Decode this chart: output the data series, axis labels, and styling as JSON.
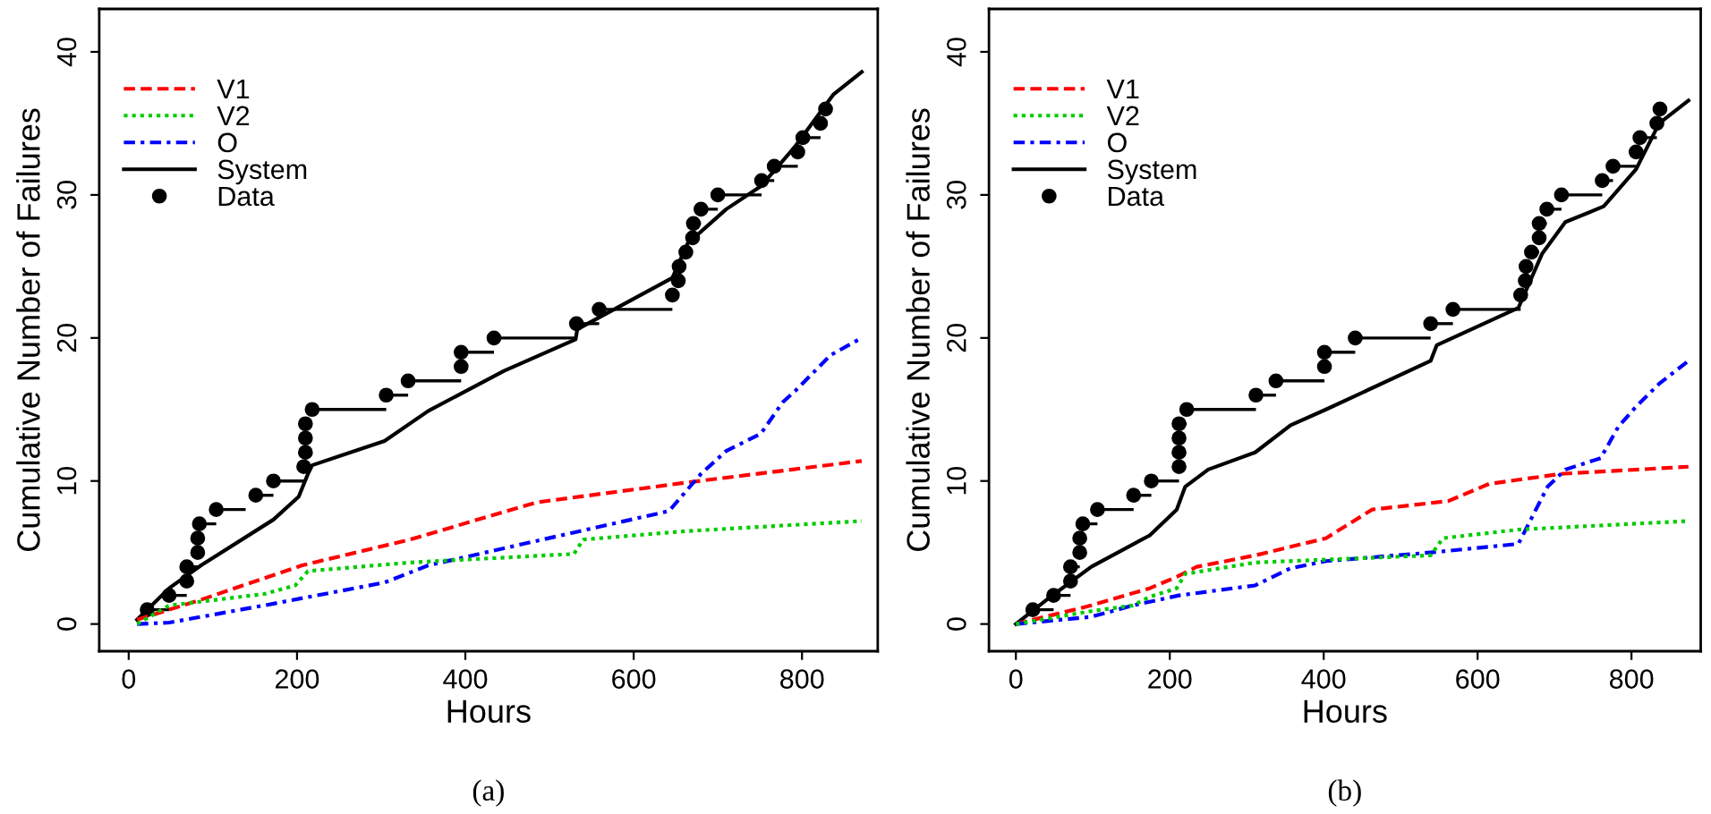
{
  "chart_data": [
    {
      "type": "line",
      "xlabel": "Hours",
      "ylabel": "Cumulative Number of Failures",
      "annotations": [
        "(a)"
      ],
      "xlim": [
        -35,
        890
      ],
      "ylim": [
        -1.9,
        43
      ],
      "xticks": [
        0,
        200,
        400,
        600,
        800
      ],
      "yticks": [
        0,
        10,
        20,
        30,
        40
      ],
      "grid": false,
      "legend": "top left",
      "series": [
        {
          "name": "V1",
          "color": "#ff0000",
          "line_style": "dashed",
          "x": [
            10,
            86,
            206,
            334,
            484,
            664,
            871
          ],
          "values": [
            0.3,
            1.7,
            4.1,
            5.9,
            8.5,
            9.9,
            11.4
          ]
        },
        {
          "name": "V2",
          "color": "#00cc00",
          "line_style": "dotted",
          "x": [
            10,
            48,
            161,
            198,
            213,
            334,
            529,
            540,
            664,
            871
          ],
          "values": [
            0,
            1.3,
            2.1,
            2.7,
            3.7,
            4.3,
            4.9,
            5.9,
            6.5,
            7.2
          ]
        },
        {
          "name": "O",
          "color": "#0000ff",
          "line_style": "dashdot",
          "x": [
            10,
            48,
            161,
            304,
            356,
            642,
            680,
            710,
            751,
            777,
            792,
            834,
            871
          ],
          "values": [
            0,
            0.1,
            1.3,
            2.9,
            4.1,
            7.9,
            10.5,
            12.1,
            13.3,
            15.5,
            16.3,
            18.8,
            20
          ]
        },
        {
          "name": "System",
          "color": "#000000",
          "line_style": "solid",
          "x": [
            10,
            48,
            86,
            172,
            202,
            213,
            218,
            304,
            356,
            446,
            531,
            533,
            646,
            664,
            710,
            751,
            792,
            837,
            871
          ],
          "values": [
            0.3,
            2.5,
            4.1,
            7.3,
            8.9,
            10.5,
            11.1,
            12.8,
            14.9,
            17.7,
            19.9,
            20.6,
            24.2,
            26.6,
            29,
            30.6,
            33.4,
            37,
            38.6
          ]
        },
        {
          "name": "Data",
          "type": "scatter",
          "color": "#000000",
          "marker": "circle",
          "xerrors": [
            [
              22,
              48
            ],
            [
              48,
              69
            ],
            null,
            [
              69,
              82
            ],
            null,
            null,
            [
              84,
              104
            ],
            [
              104,
              139
            ],
            [
              151,
              172
            ],
            [
              172,
              208
            ],
            null,
            null,
            null,
            [
              210,
              218
            ],
            [
              218,
              306
            ],
            [
              306,
              332
            ],
            [
              332,
              395
            ],
            null,
            [
              395,
              434
            ],
            [
              434,
              532
            ],
            [
              532,
              559
            ],
            [
              559,
              646
            ],
            [
              646,
              653
            ],
            null,
            [
              654,
              662
            ],
            [
              662,
              670
            ],
            null,
            [
              671,
              680
            ],
            [
              680,
              700
            ],
            [
              700,
              752
            ],
            [
              752,
              767
            ],
            [
              767,
              795
            ],
            [
              795,
              801
            ],
            [
              801,
              822
            ],
            [
              822,
              828
            ],
            null
          ],
          "x": [
            22,
            48,
            69,
            69,
            82,
            82,
            84,
            104,
            151,
            172,
            208,
            210,
            210,
            210,
            218,
            306,
            332,
            395,
            395,
            434,
            532,
            559,
            646,
            653,
            654,
            662,
            670,
            671,
            680,
            700,
            752,
            767,
            795,
            801,
            822,
            828
          ],
          "values": [
            1,
            2,
            3,
            4,
            5,
            6,
            7,
            8,
            9,
            10,
            11,
            12,
            13,
            14,
            15,
            16,
            17,
            18,
            19,
            20,
            21,
            22,
            23,
            24,
            25,
            26,
            27,
            28,
            29,
            30,
            31,
            32,
            33,
            34,
            35,
            36
          ]
        }
      ]
    },
    {
      "type": "line",
      "xlabel": "Hours",
      "ylabel": "Cumulative Number of Failures",
      "annotations": [
        "(b)"
      ],
      "xlim": [
        -35,
        890
      ],
      "ylim": [
        -1.9,
        43
      ],
      "xticks": [
        0,
        200,
        400,
        600,
        800
      ],
      "yticks": [
        0,
        10,
        20,
        30,
        40
      ],
      "grid": false,
      "legend": "top left",
      "series": [
        {
          "name": "V1",
          "color": "#ff0000",
          "line_style": "dashed",
          "x": [
            0,
            98,
            174,
            209,
            235,
            311,
            357,
            403,
            463,
            562,
            615,
            709,
            874
          ],
          "values": [
            0,
            1.3,
            2.5,
            3.3,
            4.0,
            4.8,
            5.4,
            6.0,
            8.0,
            8.6,
            9.8,
            10.5,
            11
          ]
        },
        {
          "name": "V2",
          "color": "#00cc00",
          "line_style": "dotted",
          "x": [
            0,
            98,
            152,
            174,
            209,
            220,
            311,
            539,
            555,
            653,
            874
          ],
          "values": [
            0,
            0.9,
            1.3,
            1.9,
            2.5,
            3.5,
            4.3,
            4.8,
            6.0,
            6.6,
            7.2
          ]
        },
        {
          "name": "O",
          "color": "#0000ff",
          "line_style": "dashdot",
          "x": [
            0,
            98,
            152,
            212,
            311,
            357,
            403,
            539,
            653,
            691,
            714,
            760,
            783,
            806,
            836,
            874
          ],
          "values": [
            0,
            0.5,
            1.3,
            2.0,
            2.7,
            3.9,
            4.4,
            5.0,
            5.6,
            9.6,
            10.8,
            11.6,
            13.8,
            15.2,
            16.8,
            18.4
          ]
        },
        {
          "name": "System",
          "color": "#000000",
          "line_style": "solid",
          "x": [
            0,
            45,
            98,
            174,
            209,
            220,
            250,
            311,
            357,
            403,
            539,
            547,
            653,
            684,
            714,
            764,
            806,
            836,
            874
          ],
          "values": [
            0,
            1.9,
            4.0,
            6.2,
            8.0,
            9.6,
            10.8,
            12,
            13.9,
            15,
            18.4,
            19.5,
            22.1,
            25.9,
            28.1,
            29.2,
            31.8,
            35,
            36.6
          ]
        },
        {
          "name": "Data",
          "type": "scatter",
          "color": "#000000",
          "marker": "circle",
          "xerrors": [
            [
              22,
              49
            ],
            [
              49,
              71
            ],
            null,
            [
              71,
              83
            ],
            null,
            null,
            [
              87,
              106
            ],
            [
              106,
              153
            ],
            [
              153,
              176
            ],
            [
              176,
              212
            ],
            null,
            null,
            null,
            [
              212,
              222
            ],
            [
              222,
              312
            ],
            [
              312,
              338
            ],
            [
              338,
              401
            ],
            null,
            [
              401,
              441
            ],
            [
              441,
              539
            ],
            [
              539,
              568
            ],
            [
              568,
              656
            ],
            [
              656,
              662
            ],
            null,
            [
              663,
              670
            ],
            [
              670,
              680
            ],
            null,
            [
              680,
              690
            ],
            [
              690,
              709
            ],
            [
              709,
              762
            ],
            [
              762,
              776
            ],
            [
              776,
              806
            ],
            [
              806,
              811
            ],
            [
              811,
              833
            ],
            [
              833,
              837
            ],
            null
          ],
          "x": [
            22,
            49,
            71,
            71,
            83,
            83,
            87,
            106,
            153,
            176,
            212,
            212,
            212,
            212,
            222,
            312,
            338,
            401,
            401,
            441,
            539,
            568,
            656,
            662,
            663,
            670,
            680,
            680,
            690,
            709,
            762,
            776,
            806,
            811,
            833,
            837
          ],
          "values": [
            1,
            2,
            3,
            4,
            5,
            6,
            7,
            8,
            9,
            10,
            11,
            12,
            13,
            14,
            15,
            16,
            17,
            18,
            19,
            20,
            21,
            22,
            23,
            24,
            25,
            26,
            27,
            28,
            29,
            30,
            31,
            32,
            33,
            34,
            35,
            36
          ]
        }
      ]
    }
  ]
}
